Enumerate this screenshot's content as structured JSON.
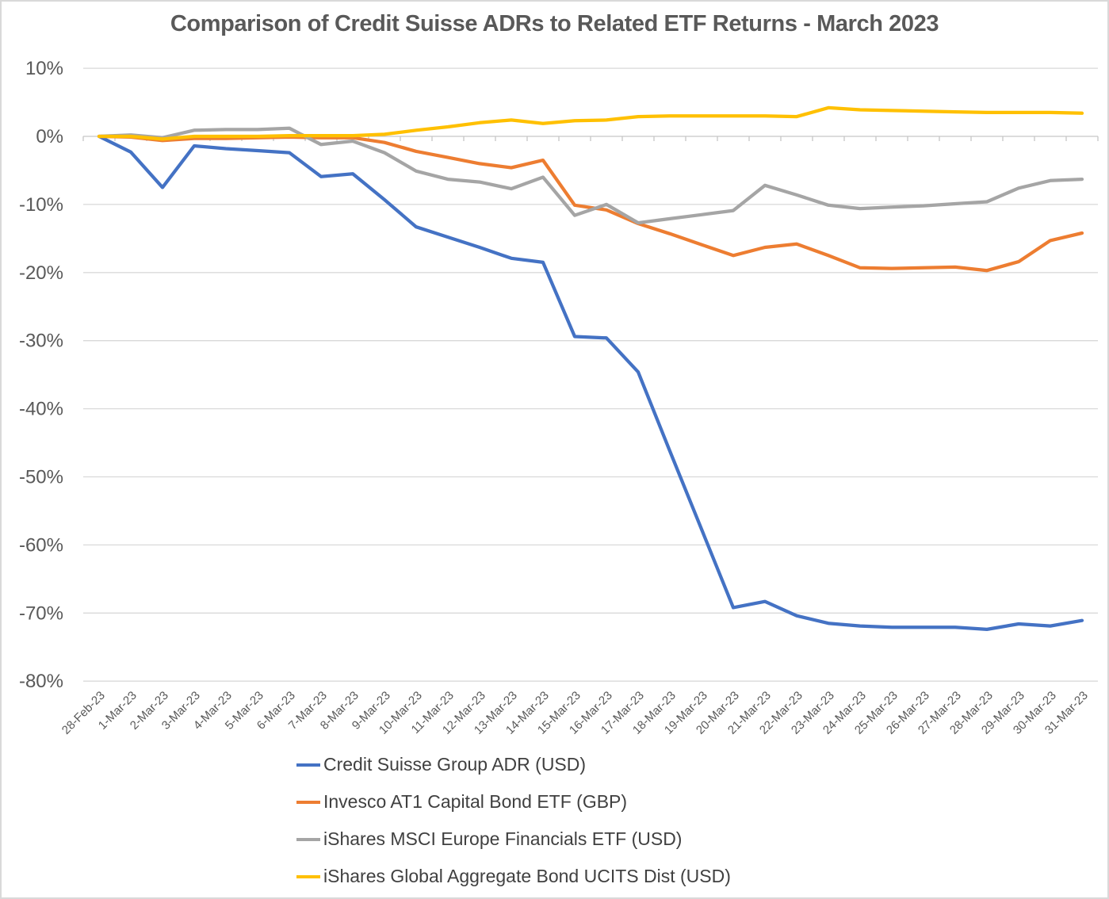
{
  "title": "Comparison of Credit Suisse ADRs to Related ETF Returns - March 2023",
  "chart_data": {
    "type": "line",
    "units": "percent cumulative return",
    "x": [
      "28-Feb-23",
      "1-Mar-23",
      "2-Mar-23",
      "3-Mar-23",
      "4-Mar-23",
      "5-Mar-23",
      "6-Mar-23",
      "7-Mar-23",
      "8-Mar-23",
      "9-Mar-23",
      "10-Mar-23",
      "11-Mar-23",
      "12-Mar-23",
      "13-Mar-23",
      "14-Mar-23",
      "15-Mar-23",
      "16-Mar-23",
      "17-Mar-23",
      "18-Mar-23",
      "19-Mar-23",
      "20-Mar-23",
      "21-Mar-23",
      "22-Mar-23",
      "23-Mar-23",
      "24-Mar-23",
      "25-Mar-23",
      "26-Mar-23",
      "27-Mar-23",
      "28-Mar-23",
      "29-Mar-23",
      "30-Mar-23",
      "31-Mar-23"
    ],
    "series": [
      {
        "name": "Credit Suisse Group ADR (USD)",
        "color": "#4472C4",
        "values": [
          0,
          -2.3,
          -7.5,
          -1.4,
          -1.8,
          -2.1,
          -2.4,
          -5.9,
          -5.5,
          -9.3,
          -13.3,
          -14.8,
          -16.3,
          -17.9,
          -18.5,
          -29.4,
          -29.6,
          -34.6,
          -46.2,
          -57.7,
          -69.2,
          -68.3,
          -70.4,
          -71.5,
          -71.9,
          -72.1,
          -72.1,
          -72.1,
          -72.4,
          -71.6,
          -71.9,
          -71.1
        ]
      },
      {
        "name": "Invesco AT1 Capital Bond ETF (GBP)",
        "color": "#ED7D31",
        "values": [
          0,
          -0.1,
          -0.6,
          -0.3,
          -0.3,
          -0.2,
          -0.1,
          -0.2,
          -0.2,
          -0.9,
          -2.2,
          -3.1,
          -4.0,
          -4.6,
          -3.5,
          -10.1,
          -10.8,
          -12.8,
          -14.3,
          -15.9,
          -17.5,
          -16.3,
          -15.8,
          -17.5,
          -19.3,
          -19.4,
          -19.3,
          -19.2,
          -19.7,
          -18.4,
          -15.3,
          -14.2
        ]
      },
      {
        "name": "iShares MSCI Europe Financials ETF (USD)",
        "color": "#A5A5A5",
        "values": [
          0,
          0.2,
          -0.2,
          0.9,
          1.0,
          1.0,
          1.2,
          -1.2,
          -0.7,
          -2.4,
          -5.1,
          -6.3,
          -6.7,
          -7.7,
          -6.0,
          -11.6,
          -10.0,
          -12.7,
          -12.1,
          -11.5,
          -10.9,
          -7.2,
          -8.6,
          -10.1,
          -10.6,
          -10.4,
          -10.2,
          -9.9,
          -9.6,
          -7.6,
          -6.5,
          -6.3
        ]
      },
      {
        "name": "iShares Global Aggregate Bond UCITS Dist (USD)",
        "color": "#FFC000",
        "values": [
          0,
          0.0,
          -0.4,
          0.0,
          0.0,
          0.0,
          0.1,
          0.1,
          0.1,
          0.3,
          0.9,
          1.4,
          2.0,
          2.4,
          1.9,
          2.3,
          2.4,
          2.9,
          3.0,
          3.0,
          3.0,
          3.0,
          2.9,
          4.2,
          3.9,
          3.8,
          3.7,
          3.6,
          3.5,
          3.5,
          3.5,
          3.4
        ]
      }
    ],
    "y_ticks": [
      "10%",
      "0%",
      "-10%",
      "-20%",
      "-30%",
      "-40%",
      "-50%",
      "-60%",
      "-70%",
      "-80%"
    ],
    "y_tick_values": [
      10,
      0,
      -10,
      -20,
      -30,
      -40,
      -50,
      -60,
      -70,
      -80
    ],
    "ylim": [
      -80,
      10
    ],
    "xlabel": "",
    "ylabel": "",
    "grid": true,
    "legend_position": "bottom-left"
  }
}
